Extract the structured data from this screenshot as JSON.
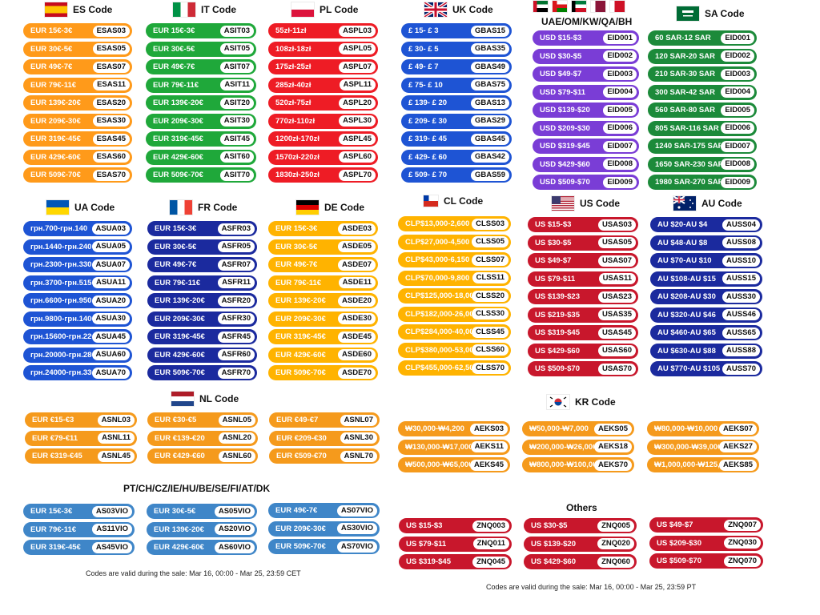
{
  "colors": {
    "orange": "#FF9A1A",
    "green": "#1FA83A",
    "red": "#EE1C25",
    "blue": "#1E54D4",
    "purple": "#7A3DD6",
    "darkgreen": "#1C8A3A",
    "navy": "#1B2A9E",
    "amber": "#FFB300",
    "crimson": "#C8172C",
    "nl_orange": "#F59A1C",
    "steel": "#3F86C8",
    "kr_orange": "#F59A1C",
    "others_red": "#C8172C"
  },
  "groups": {
    "es": {
      "title": "ES Code",
      "flag": "es-flag",
      "color": "#FF9A1A",
      "items": [
        {
          "deal": "EUR 15€-3€",
          "code": "ESAS03"
        },
        {
          "deal": "EUR 30€-5€",
          "code": "ESAS05"
        },
        {
          "deal": "EUR 49€-7€",
          "code": "ESAS07"
        },
        {
          "deal": "EUR 79€-11€",
          "code": "ESAS11"
        },
        {
          "deal": "EUR 139€-20€",
          "code": "ESAS20"
        },
        {
          "deal": "EUR 209€-30€",
          "code": "ESAS30"
        },
        {
          "deal": "EUR 319€-45€",
          "code": "ESAS45"
        },
        {
          "deal": "EUR 429€-60€",
          "code": "ESAS60"
        },
        {
          "deal": "EUR 509€-70€",
          "code": "ESAS70"
        }
      ]
    },
    "it": {
      "title": "IT Code",
      "flag": "it-flag",
      "color": "#1FA83A",
      "items": [
        {
          "deal": "EUR 15€-3€",
          "code": "ASIT03"
        },
        {
          "deal": "EUR 30€-5€",
          "code": "ASIT05"
        },
        {
          "deal": "EUR 49€-7€",
          "code": "ASIT07"
        },
        {
          "deal": "EUR 79€-11€",
          "code": "ASIT11"
        },
        {
          "deal": "EUR 139€-20€",
          "code": "ASIT20"
        },
        {
          "deal": "EUR 209€-30€",
          "code": "ASIT30"
        },
        {
          "deal": "EUR 319€-45€",
          "code": "ASIT45"
        },
        {
          "deal": "EUR 429€-60€",
          "code": "ASIT60"
        },
        {
          "deal": "EUR 509€-70€",
          "code": "ASIT70"
        }
      ]
    },
    "pl": {
      "title": "PL Code",
      "flag": "pl-flag",
      "color": "#EE1C25",
      "items": [
        {
          "deal": "55zł-11zł",
          "code": "ASPL03"
        },
        {
          "deal": "108zł-18zł",
          "code": "ASPL05"
        },
        {
          "deal": "175zł-25zł",
          "code": "ASPL07"
        },
        {
          "deal": "285zł-40zł",
          "code": "ASPL11"
        },
        {
          "deal": "520zł-75zł",
          "code": "ASPL20"
        },
        {
          "deal": "770zł-110zł",
          "code": "ASPL30"
        },
        {
          "deal": "1200zł-170zł",
          "code": "ASPL45"
        },
        {
          "deal": "1570zł-220zł",
          "code": "ASPL60"
        },
        {
          "deal": "1830zł-250zł",
          "code": "ASPL70"
        }
      ]
    },
    "uk": {
      "title": "UK Code",
      "flag": "uk-flag",
      "color": "#1E54D4",
      "items": [
        {
          "deal": "£ 15- £ 3",
          "code": "GBAS15"
        },
        {
          "deal": "£ 30- £ 5",
          "code": "GBAS35"
        },
        {
          "deal": "£ 49- £ 7",
          "code": "GBAS49"
        },
        {
          "deal": "£ 75- £ 10",
          "code": "GBAS75"
        },
        {
          "deal": "£ 139- £ 20",
          "code": "GBAS13"
        },
        {
          "deal": "£ 209- £ 30",
          "code": "GBAS29"
        },
        {
          "deal": "£ 319- £ 45",
          "code": "GBAS45"
        },
        {
          "deal": "£ 429- £ 60",
          "code": "GBAS42"
        },
        {
          "deal": "£ 509- £ 70",
          "code": "GBAS59"
        }
      ]
    },
    "uae": {
      "title": "UAE/OM/KW/QA/BH",
      "color": "#7A3DD6",
      "items": [
        {
          "deal": "USD $15-$3",
          "code": "EID001"
        },
        {
          "deal": "USD $30-$5",
          "code": "EID002"
        },
        {
          "deal": "USD $49-$7",
          "code": "EID003"
        },
        {
          "deal": "USD $79-$11",
          "code": "EID004"
        },
        {
          "deal": "USD $139-$20",
          "code": "EID005"
        },
        {
          "deal": "USD $209-$30",
          "code": "EID006"
        },
        {
          "deal": "USD $319-$45",
          "code": "EID007"
        },
        {
          "deal": "USD $429-$60",
          "code": "EID008"
        },
        {
          "deal": "USD $509-$70",
          "code": "EID009"
        }
      ]
    },
    "sa": {
      "title": "SA Code",
      "flag": "sa-flag",
      "color": "#1C8A3A",
      "items": [
        {
          "deal": "60 SAR-12 SAR",
          "code": "EID001"
        },
        {
          "deal": "120 SAR-20 SAR",
          "code": "EID002"
        },
        {
          "deal": "210 SAR-30 SAR",
          "code": "EID003"
        },
        {
          "deal": "300 SAR-42 SAR",
          "code": "EID004"
        },
        {
          "deal": "560 SAR-80 SAR",
          "code": "EID005"
        },
        {
          "deal": "805 SAR-116 SAR",
          "code": "EID006"
        },
        {
          "deal": "1240 SAR-175 SAR",
          "code": "EID007"
        },
        {
          "deal": "1650 SAR-230 SAR",
          "code": "EID008"
        },
        {
          "deal": "1980 SAR-270 SAR",
          "code": "EID009"
        }
      ]
    },
    "ua": {
      "title": "UA Code",
      "flag": "ua-flag",
      "color": "#1E54D4",
      "items": [
        {
          "deal": "грн.700-грн.140",
          "code": "ASUA03"
        },
        {
          "deal": "грн.1440-грн.240",
          "code": "ASUA05"
        },
        {
          "deal": "грн.2300-грн.330",
          "code": "ASUA07"
        },
        {
          "deal": "грн.3700-грн.515",
          "code": "ASUA11"
        },
        {
          "deal": "грн.6600-грн.950",
          "code": "ASUA20"
        },
        {
          "deal": "грн.9800-грн.1400",
          "code": "ASUA30"
        },
        {
          "deal": "грн.15600-грн.2200",
          "code": "ASUA45"
        },
        {
          "deal": "грн.20000-грн.2800",
          "code": "ASUA60"
        },
        {
          "deal": "грн.24000-грн.3300",
          "code": "ASUA70"
        }
      ]
    },
    "fr": {
      "title": "FR Code",
      "flag": "fr-flag",
      "color": "#1B2A9E",
      "items": [
        {
          "deal": "EUR 15€-3€",
          "code": "ASFR03"
        },
        {
          "deal": "EUR 30€-5€",
          "code": "ASFR05"
        },
        {
          "deal": "EUR 49€-7€",
          "code": "ASFR07"
        },
        {
          "deal": "EUR 79€-11€",
          "code": "ASFR11"
        },
        {
          "deal": "EUR 139€-20€",
          "code": "ASFR20"
        },
        {
          "deal": "EUR 209€-30€",
          "code": "ASFR30"
        },
        {
          "deal": "EUR 319€-45€",
          "code": "ASFR45"
        },
        {
          "deal": "EUR 429€-60€",
          "code": "ASFR60"
        },
        {
          "deal": "EUR 509€-70€",
          "code": "ASFR70"
        }
      ]
    },
    "de": {
      "title": "DE Code",
      "flag": "de-flag",
      "color": "#FFB300",
      "items": [
        {
          "deal": "EUR 15€-3€",
          "code": "ASDE03"
        },
        {
          "deal": "EUR 30€-5€",
          "code": "ASDE05"
        },
        {
          "deal": "EUR 49€-7€",
          "code": "ASDE07"
        },
        {
          "deal": "EUR 79€-11€",
          "code": "ASDE11"
        },
        {
          "deal": "EUR 139€-20€",
          "code": "ASDE20"
        },
        {
          "deal": "EUR 209€-30€",
          "code": "ASDE30"
        },
        {
          "deal": "EUR 319€-45€",
          "code": "ASDE45"
        },
        {
          "deal": "EUR 429€-60€",
          "code": "ASDE60"
        },
        {
          "deal": "EUR 509€-70€",
          "code": "ASDE70"
        }
      ]
    },
    "cl": {
      "title": "CL Code",
      "flag": "cl-flag",
      "color": "#FFB300",
      "items": [
        {
          "deal": "CLP$13,000-2,600",
          "code": "CLSS03"
        },
        {
          "deal": "CLP$27,000-4,500",
          "code": "CLSS05"
        },
        {
          "deal": "CLP$43,000-6,150",
          "code": "CLSS07"
        },
        {
          "deal": "CLP$70,000-9,800",
          "code": "CLSS11"
        },
        {
          "deal": "CLP$125,000-18,000",
          "code": "CLSS20"
        },
        {
          "deal": "CLP$182,000-26,000",
          "code": "CLSS30"
        },
        {
          "deal": "CLP$284,000-40,000",
          "code": "CLSS45"
        },
        {
          "deal": "CLP$380,000-53,000",
          "code": "CLSS60"
        },
        {
          "deal": "CLP$455,000-62,500",
          "code": "CLSS70"
        }
      ]
    },
    "us": {
      "title": "US Code",
      "flag": "us-flag",
      "color": "#C8172C",
      "items": [
        {
          "deal": "US $15-$3",
          "code": "USAS03"
        },
        {
          "deal": "US $30-$5",
          "code": "USAS05"
        },
        {
          "deal": "US $49-$7",
          "code": "USAS07"
        },
        {
          "deal": "US $79-$11",
          "code": "USAS11"
        },
        {
          "deal": "US $139-$23",
          "code": "USAS23"
        },
        {
          "deal": "US $219-$35",
          "code": "USAS35"
        },
        {
          "deal": "US $319-$45",
          "code": "USAS45"
        },
        {
          "deal": "US $429-$60",
          "code": "USAS60"
        },
        {
          "deal": "US $509-$70",
          "code": "USAS70"
        }
      ]
    },
    "au": {
      "title": "AU Code",
      "flag": "au-flag",
      "color": "#1B2A9E",
      "items": [
        {
          "deal": "AU $20-AU $4",
          "code": "AUSS04"
        },
        {
          "deal": "AU $48-AU $8",
          "code": "AUSS08"
        },
        {
          "deal": "AU $70-AU $10",
          "code": "AUSS10"
        },
        {
          "deal": "AU $108-AU $15",
          "code": "AUSS15"
        },
        {
          "deal": "AU $208-AU $30",
          "code": "AUSS30"
        },
        {
          "deal": "AU $320-AU $46",
          "code": "AUSS46"
        },
        {
          "deal": "AU $460-AU $65",
          "code": "AUSS65"
        },
        {
          "deal": "AU $630-AU $88",
          "code": "AUSS88"
        },
        {
          "deal": "AU $770-AU $105",
          "code": "AUSS70"
        }
      ]
    },
    "nl1": {
      "color": "#F59A1C",
      "items": [
        {
          "deal": "EUR €15-€3",
          "code": "ASNL03"
        },
        {
          "deal": "EUR €79-€11",
          "code": "ASNL11"
        },
        {
          "deal": "EUR €319-€45",
          "code": "ASNL45"
        }
      ]
    },
    "nl2": {
      "color": "#F59A1C",
      "items": [
        {
          "deal": "EUR €30-€5",
          "code": "ASNL05"
        },
        {
          "deal": "EUR €139-€20",
          "code": "ASNL20"
        },
        {
          "deal": "EUR €429-€60",
          "code": "ASNL60"
        }
      ]
    },
    "nl3": {
      "color": "#F59A1C",
      "items": [
        {
          "deal": "EUR €49-€7",
          "code": "ASNL07"
        },
        {
          "deal": "EUR €209-€30",
          "code": "ASNL30"
        },
        {
          "deal": "EUR €509-€70",
          "code": "ASNL70"
        }
      ]
    },
    "pt1": {
      "color": "#3F86C8",
      "items": [
        {
          "deal": "EUR 15€-3€",
          "code": "AS03VIO"
        },
        {
          "deal": "EUR 79€-11€",
          "code": "AS11VIO"
        },
        {
          "deal": "EUR 319€-45€",
          "code": "AS45VIO"
        }
      ]
    },
    "pt2": {
      "color": "#3F86C8",
      "items": [
        {
          "deal": "EUR 30€-5€",
          "code": "AS05VIO"
        },
        {
          "deal": "EUR 139€-20€",
          "code": "AS20VIO"
        },
        {
          "deal": "EUR 429€-60€",
          "code": "AS60VIO"
        }
      ]
    },
    "pt3": {
      "color": "#3F86C8",
      "items": [
        {
          "deal": "EUR 49€-7€",
          "code": "AS07VIO"
        },
        {
          "deal": "EUR 209€-30€",
          "code": "AS30VIO"
        },
        {
          "deal": "EUR 509€-70€",
          "code": "AS70VIO"
        }
      ]
    },
    "kr1": {
      "color": "#F59A1C",
      "items": [
        {
          "deal": "₩30,000-₩4,200",
          "code": "AEKS03"
        },
        {
          "deal": "₩130,000-₩17,000",
          "code": "AEKS11"
        },
        {
          "deal": "₩500,000-₩65,000",
          "code": "AEKS45"
        }
      ]
    },
    "kr2": {
      "color": "#F59A1C",
      "items": [
        {
          "deal": "₩50,000-₩7,000",
          "code": "AEKS05"
        },
        {
          "deal": "₩200,000-₩26,000",
          "code": "AEKS18"
        },
        {
          "deal": "₩800,000-₩100,000",
          "code": "AEKS70"
        }
      ]
    },
    "kr3": {
      "color": "#F59A1C",
      "items": [
        {
          "deal": "₩80,000-₩10,000",
          "code": "AEKS07"
        },
        {
          "deal": "₩300,000-₩39,000",
          "code": "AEKS27"
        },
        {
          "deal": "₩1,000,000-₩125,000",
          "code": "AEKS85"
        }
      ]
    },
    "ot1": {
      "color": "#C8172C",
      "items": [
        {
          "deal": "US $15-$3",
          "code": "ZNQ003"
        },
        {
          "deal": "US $79-$11",
          "code": "ZNQ011"
        },
        {
          "deal": "US $319-$45",
          "code": "ZNQ045"
        }
      ]
    },
    "ot2": {
      "color": "#C8172C",
      "items": [
        {
          "deal": "US $30-$5",
          "code": "ZNQ005"
        },
        {
          "deal": "US $139-$20",
          "code": "ZNQ020"
        },
        {
          "deal": "US $429-$60",
          "code": "ZNQ060"
        }
      ]
    },
    "ot3": {
      "color": "#C8172C",
      "items": [
        {
          "deal": "US $49-$7",
          "code": "ZNQ007"
        },
        {
          "deal": "US $209-$30",
          "code": "ZNQ030"
        },
        {
          "deal": "US $509-$70",
          "code": "ZNQ070"
        }
      ]
    }
  },
  "headers": {
    "nl": "NL Code",
    "kr": "KR Code",
    "pt": "PT/CH/CZ/IE/HU/BE/SE/FI/AT/DK",
    "others": "Others"
  },
  "notes": {
    "cet": "Codes are valid during the sale: Mar 16, 00:00 - Mar 25, 23:59 CET",
    "pt": "Codes are valid during the sale: Mar 16, 00:00 - Mar 25, 23:59 PT"
  }
}
